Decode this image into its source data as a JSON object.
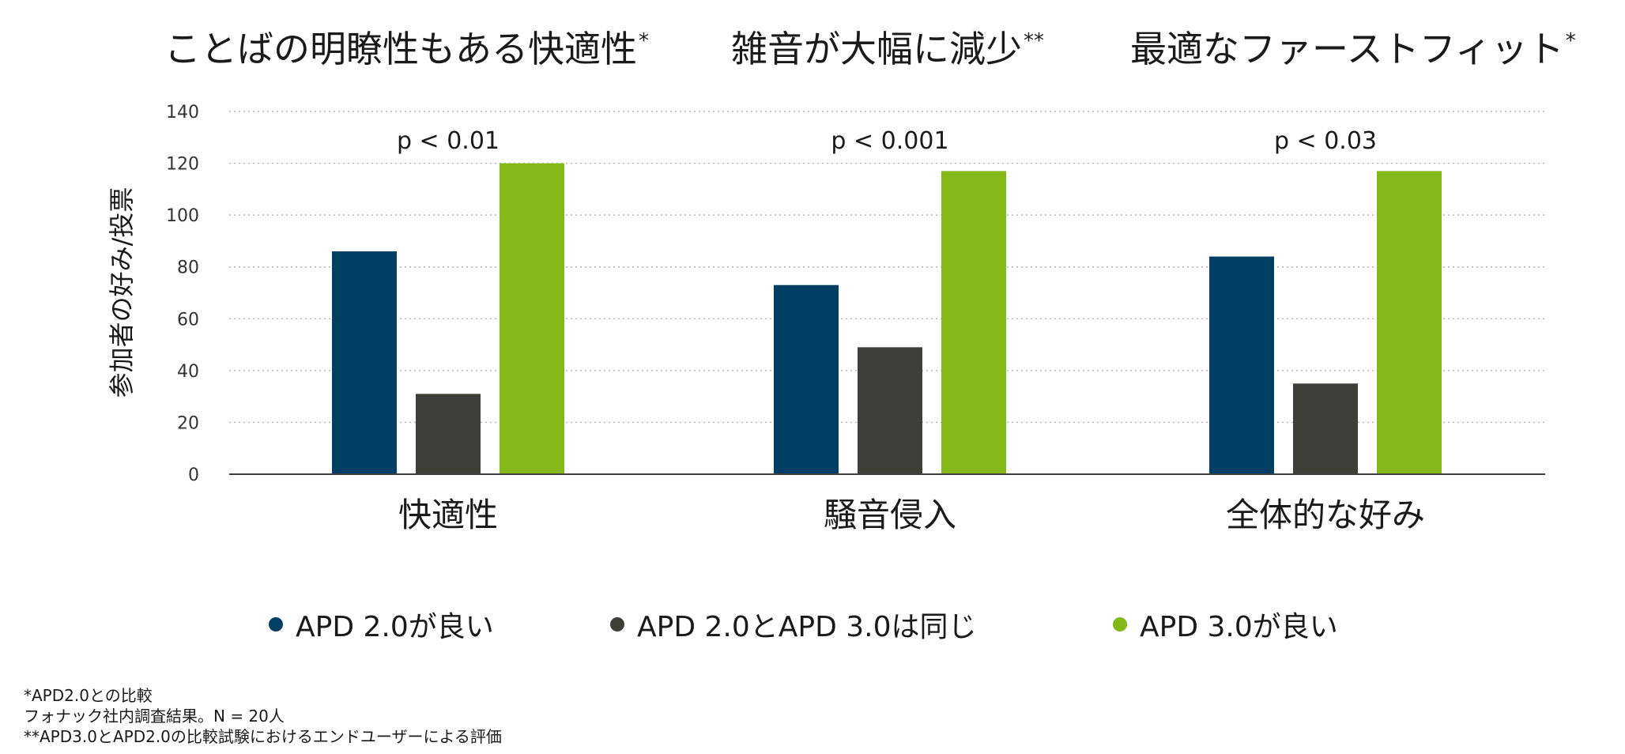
{
  "headings": [
    {
      "text": "ことばの明瞭性もある快適性",
      "mark": "*"
    },
    {
      "text": "雑音が大幅に減少",
      "mark": "**"
    },
    {
      "text": "最適なファーストフィット",
      "mark": "*"
    }
  ],
  "footnotes": [
    "*APD2.0との比較",
    "フォナック社内調査結果。N = 20人",
    "**APD3.0とAPD2.0の比較試験におけるエンドユーザーによる評価"
  ],
  "chart_data": {
    "type": "bar",
    "categories": [
      "快適性",
      "騒音侵入",
      "全体的な好み"
    ],
    "ylabel": "参加者の好み/投票",
    "ylim": [
      0,
      140
    ],
    "yticks": [
      0,
      20,
      40,
      60,
      80,
      100,
      120,
      140
    ],
    "grid": true,
    "legend_position": "bottom",
    "annotations": [
      "p < 0.01",
      "p < 0.001",
      "p < 0.03"
    ],
    "series": [
      {
        "name": "APD 2.0が良い",
        "color": "#003f63",
        "values": [
          86,
          73,
          84
        ]
      },
      {
        "name": "APD 2.0とAPD 3.0は同じ",
        "color": "#3f3f3a",
        "values": [
          31,
          49,
          35
        ]
      },
      {
        "name": "APD 3.0が良い",
        "color": "#84b818",
        "values": [
          120,
          117,
          117
        ]
      }
    ]
  }
}
